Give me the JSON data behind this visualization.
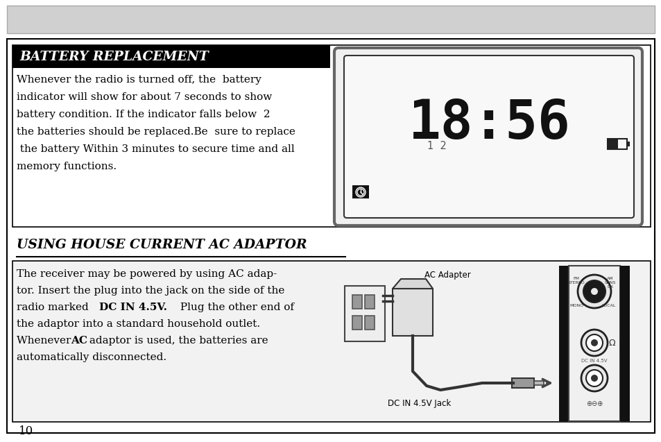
{
  "bg_color": "#ffffff",
  "border_color": "#000000",
  "title_bg": "#000000",
  "title_text_color": "#ffffff",
  "body_text_color": "#000000",
  "battery_title": "BATTERY REPLACEMENT",
  "adaptor_title": "USING HOUSE CURRENT AC ADAPTOR",
  "page_number": "10",
  "clock_display": "18:56",
  "label_1_2": "1  2",
  "ac_adapter_label": "AC Adapter",
  "dc_jack_label": "DC IN 4.5V Jack",
  "gray_banner": "#d0d0d0",
  "light_bg": "#f2f2f2"
}
